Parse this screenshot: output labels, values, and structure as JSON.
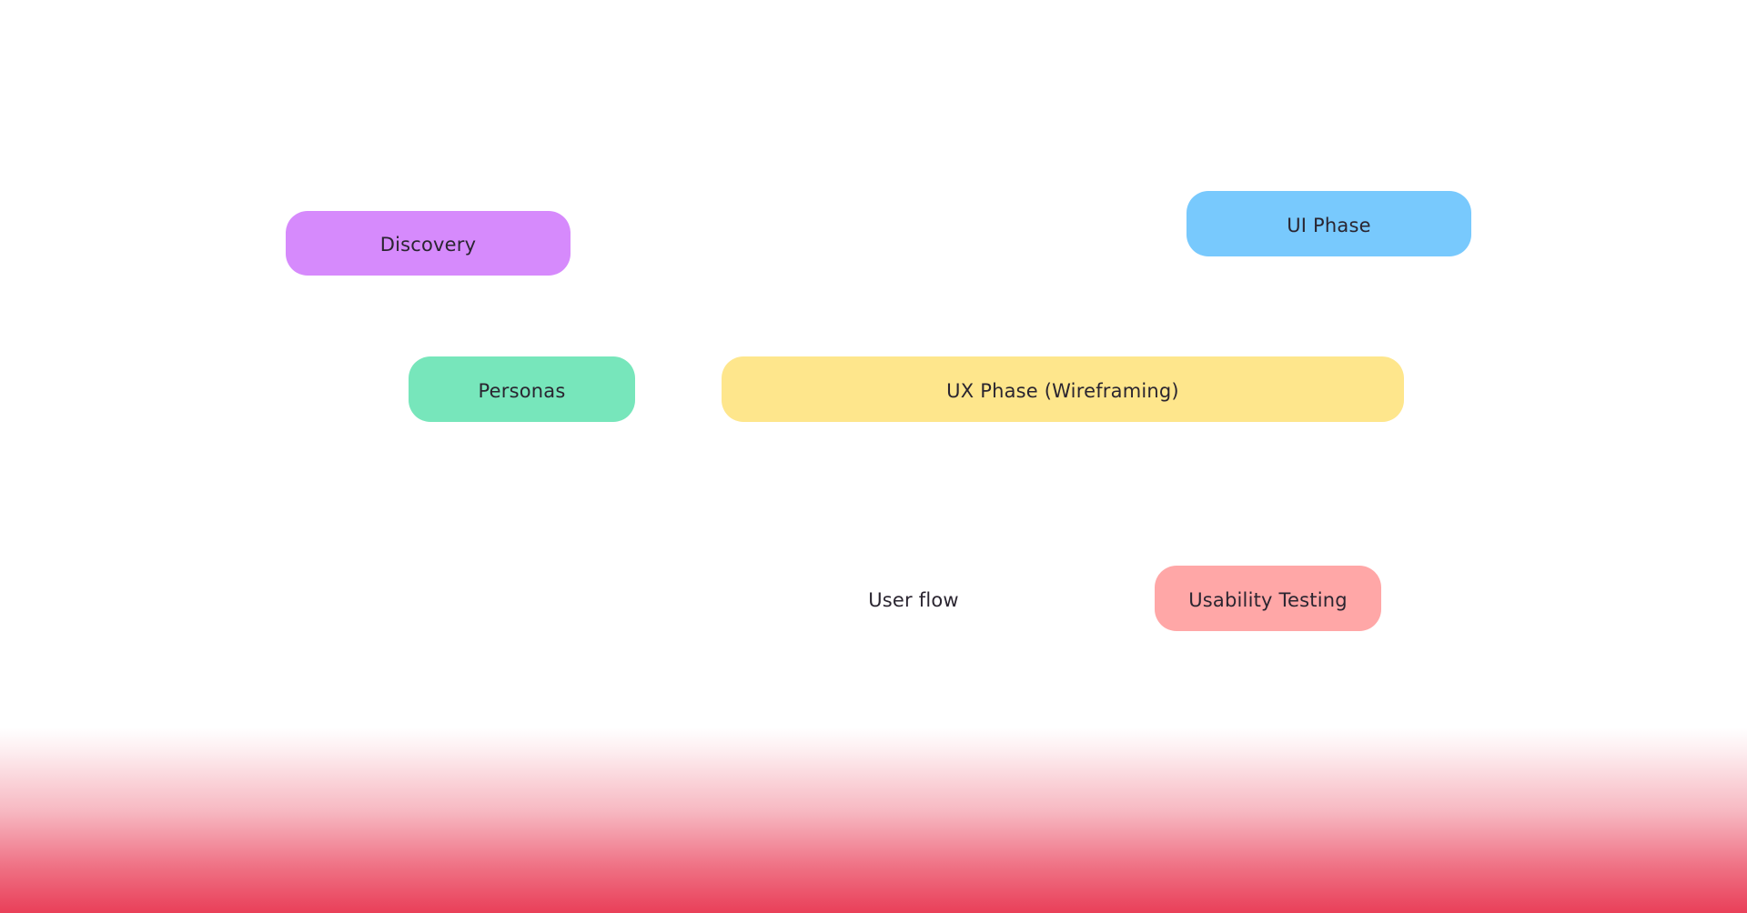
{
  "diagram": {
    "nodes": [
      {
        "id": "discovery",
        "label": "Discovery",
        "color": "#D68AFC"
      },
      {
        "id": "ui_phase",
        "label": "UI Phase",
        "color": "#78C9FD"
      },
      {
        "id": "personas",
        "label": "Personas",
        "color": "#77E6BB"
      },
      {
        "id": "ux_phase",
        "label": "UX Phase (Wireframing)",
        "color": "#FEE68C"
      },
      {
        "id": "user_flow",
        "label": "User flow",
        "color": "#FFFFFF"
      },
      {
        "id": "usability_testing",
        "label": "Usability Testing",
        "color": "#FFA7A7"
      }
    ]
  },
  "colors": {
    "background": "#FFFFFF",
    "bottom_gradient": "#E83550",
    "text": "#2A2530"
  }
}
